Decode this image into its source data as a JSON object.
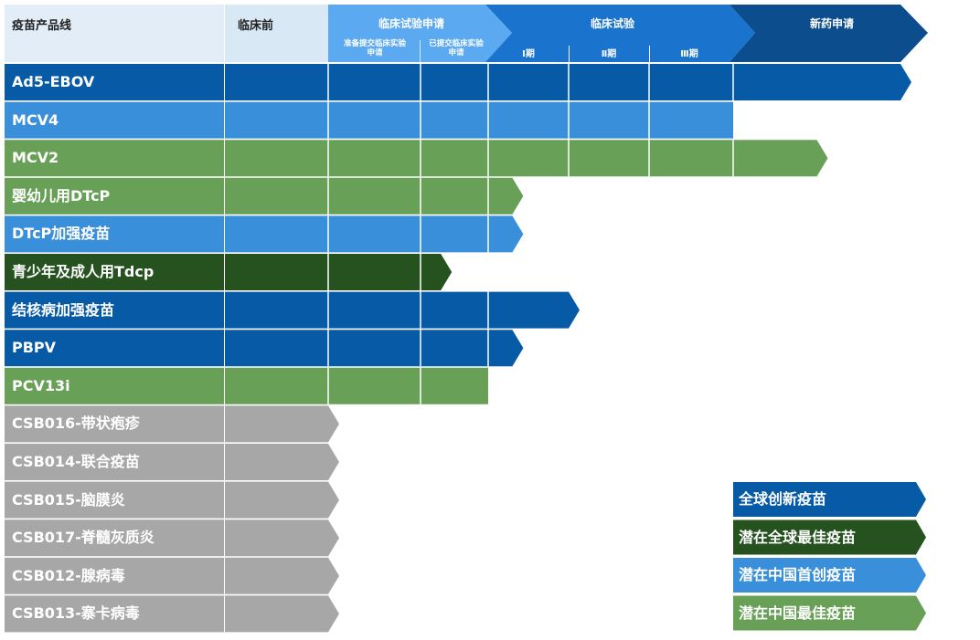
{
  "header": {
    "product_line": "疫苗产品线",
    "preclinical": "临床前",
    "ind": "临床试验申请",
    "ind_sub_preparing": "准备提交临床实验申请",
    "ind_sub_submitted": "已提交临床实验申请",
    "clinical": "临床试验",
    "phase1": "Ⅰ期",
    "phase2": "Ⅱ期",
    "phase3": "Ⅲ期",
    "nda": "新药申请"
  },
  "stages": [
    "preclinical",
    "ind_preparing",
    "ind_submitted",
    "phase1",
    "phase2",
    "phase3",
    "nda"
  ],
  "colors": {
    "global_innovative": "#075aa6",
    "global_best": "#265220",
    "china_first": "#3a8fdb",
    "china_best": "#68a057",
    "pending": "#a7a7a7",
    "header_light": "#e2edf7",
    "header_pre": "#d9e8f5",
    "header_ind": "#5ba9f1",
    "header_clinical": "#1a74cd",
    "header_nda": "#0b4d8d"
  },
  "rows": [
    {
      "name": "Ad5-EBOV",
      "category": "global_innovative",
      "stage": "nda",
      "progress": 7,
      "arrow": true
    },
    {
      "name": "MCV4",
      "category": "china_first",
      "stage": "phase3",
      "progress": 6,
      "arrow": false
    },
    {
      "name": "MCV2",
      "category": "china_best",
      "stage": "phase3",
      "progress": 6.5,
      "arrow": true
    },
    {
      "name": "婴幼儿用DTcP",
      "category": "china_best",
      "stage": "ind_submitted",
      "progress": 3.3,
      "arrow": true
    },
    {
      "name": "DTcP加强疫苗",
      "category": "china_first",
      "stage": "ind_submitted",
      "progress": 3.3,
      "arrow": true
    },
    {
      "name": "青少年及成人用Tdcp",
      "category": "global_best",
      "stage": "ind_preparing",
      "progress": 2.3,
      "arrow": true
    },
    {
      "name": "结核病加强疫苗",
      "category": "global_innovative",
      "stage": "phase1",
      "progress": 4,
      "arrow": true
    },
    {
      "name": "PBPV",
      "category": "global_innovative",
      "stage": "ind_submitted",
      "progress": 3.3,
      "arrow": true
    },
    {
      "name": "PCV13i",
      "category": "china_best",
      "stage": "ind_submitted",
      "progress": 3,
      "arrow": false
    },
    {
      "name": "CSB016-带状疱疹",
      "category": "pending",
      "stage": "preclinical",
      "progress": 1,
      "arrow": true
    },
    {
      "name": "CSB014-联合疫苗",
      "category": "pending",
      "stage": "preclinical",
      "progress": 1,
      "arrow": true
    },
    {
      "name": "CSB015-脑膜炎",
      "category": "pending",
      "stage": "preclinical",
      "progress": 1,
      "arrow": true
    },
    {
      "name": "CSB017-脊髓灰质炎",
      "category": "pending",
      "stage": "preclinical",
      "progress": 1,
      "arrow": true
    },
    {
      "name": "CSB012-腺病毒",
      "category": "pending",
      "stage": "preclinical",
      "progress": 1,
      "arrow": true
    },
    {
      "name": "CSB013-寨卡病毒",
      "category": "pending",
      "stage": "preclinical",
      "progress": 1,
      "arrow": true
    }
  ],
  "legend": [
    {
      "label": "全球创新疫苗",
      "category": "global_innovative"
    },
    {
      "label": "潜在全球最佳疫苗",
      "category": "global_best"
    },
    {
      "label": "潜在中国首创疫苗",
      "category": "china_first"
    },
    {
      "label": "潜在中国最佳疫苗",
      "category": "china_best"
    }
  ]
}
